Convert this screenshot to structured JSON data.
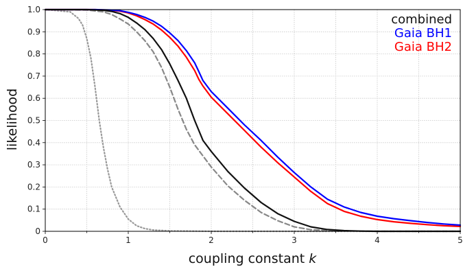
{
  "chart_data": {
    "type": "line",
    "xlabel": "coupling constant k",
    "xlabel_plain": "coupling constant ",
    "xlabel_italic": "k",
    "ylabel": "likelihood",
    "xlim": [
      0,
      5
    ],
    "ylim": [
      0,
      1
    ],
    "grid": true,
    "legend_position": "top-right",
    "x_ticks": [
      "0",
      "1",
      "2",
      "3",
      "4",
      "5"
    ],
    "y_ticks": [
      "0",
      "0.1",
      "0.2",
      "0.3",
      "0.4",
      "0.5",
      "0.6",
      "0.7",
      "0.8",
      "0.9",
      "1.0"
    ],
    "legend": [
      "combined",
      "Gaia BH1",
      "Gaia BH2"
    ],
    "series": [
      {
        "name": "Gaia BH1",
        "color": "#0000ff",
        "style": "solid",
        "x": [
          0,
          0.6,
          0.8,
          0.9,
          1.0,
          1.1,
          1.2,
          1.3,
          1.4,
          1.5,
          1.6,
          1.7,
          1.8,
          1.85,
          1.9,
          2.0,
          2.2,
          2.4,
          2.6,
          2.8,
          3.0,
          3.2,
          3.4,
          3.6,
          3.8,
          4.0,
          4.2,
          4.4,
          4.6,
          4.8,
          5.0
        ],
        "y": [
          1.0,
          1.0,
          0.998,
          0.995,
          0.988,
          0.978,
          0.965,
          0.948,
          0.925,
          0.895,
          0.86,
          0.815,
          0.76,
          0.72,
          0.68,
          0.63,
          0.555,
          0.48,
          0.41,
          0.335,
          0.265,
          0.2,
          0.145,
          0.11,
          0.085,
          0.068,
          0.057,
          0.048,
          0.04,
          0.033,
          0.028
        ]
      },
      {
        "name": "Gaia BH2",
        "color": "#ff0000",
        "style": "solid",
        "x": [
          0,
          0.6,
          0.8,
          0.9,
          1.0,
          1.1,
          1.2,
          1.3,
          1.4,
          1.5,
          1.6,
          1.7,
          1.8,
          1.85,
          1.9,
          2.0,
          2.2,
          2.4,
          2.6,
          2.8,
          3.0,
          3.2,
          3.4,
          3.6,
          3.8,
          4.0,
          4.2,
          4.4,
          4.6,
          4.8,
          5.0
        ],
        "y": [
          1.0,
          1.0,
          0.997,
          0.993,
          0.985,
          0.972,
          0.955,
          0.935,
          0.908,
          0.875,
          0.835,
          0.785,
          0.725,
          0.685,
          0.655,
          0.605,
          0.53,
          0.455,
          0.38,
          0.31,
          0.245,
          0.18,
          0.125,
          0.09,
          0.068,
          0.053,
          0.043,
          0.036,
          0.03,
          0.025,
          0.022
        ]
      },
      {
        "name": "combined",
        "color": "#111111",
        "style": "solid",
        "x": [
          0,
          0.5,
          0.7,
          0.8,
          0.9,
          1.0,
          1.1,
          1.2,
          1.3,
          1.4,
          1.5,
          1.6,
          1.7,
          1.8,
          1.9,
          2.0,
          2.2,
          2.4,
          2.6,
          2.8,
          3.0,
          3.2,
          3.4,
          3.6,
          3.8,
          4.0,
          4.5,
          5.0
        ],
        "y": [
          1.0,
          1.0,
          0.997,
          0.992,
          0.982,
          0.965,
          0.94,
          0.91,
          0.87,
          0.82,
          0.755,
          0.68,
          0.6,
          0.5,
          0.41,
          0.36,
          0.27,
          0.195,
          0.13,
          0.08,
          0.045,
          0.02,
          0.008,
          0.003,
          0.001,
          0.0,
          0.0,
          0.0
        ]
      },
      {
        "name": "",
        "color": "#888888",
        "style": "dashed",
        "x": [
          0,
          0.5,
          0.7,
          0.8,
          0.9,
          1.0,
          1.1,
          1.2,
          1.3,
          1.4,
          1.5,
          1.6,
          1.7,
          1.8,
          1.9,
          2.0,
          2.2,
          2.4,
          2.6,
          2.8,
          3.0,
          3.2,
          3.5,
          4.0,
          4.5,
          5.0
        ],
        "y": [
          1.0,
          0.998,
          0.99,
          0.978,
          0.958,
          0.935,
          0.9,
          0.86,
          0.81,
          0.74,
          0.65,
          0.55,
          0.46,
          0.39,
          0.34,
          0.29,
          0.205,
          0.14,
          0.085,
          0.048,
          0.02,
          0.007,
          0.002,
          0.0,
          0.0,
          0.0
        ]
      },
      {
        "name": "",
        "color": "#999999",
        "style": "dotted",
        "x": [
          0,
          0.3,
          0.4,
          0.45,
          0.5,
          0.55,
          0.6,
          0.65,
          0.7,
          0.75,
          0.8,
          0.9,
          1.0,
          1.1,
          1.2,
          1.3,
          1.5,
          2.0,
          3.0,
          5.0
        ],
        "y": [
          1.0,
          0.99,
          0.96,
          0.93,
          0.87,
          0.78,
          0.65,
          0.5,
          0.38,
          0.28,
          0.2,
          0.11,
          0.055,
          0.025,
          0.012,
          0.006,
          0.002,
          0.0,
          0.0,
          0.0
        ]
      }
    ],
    "legend_colors": [
      "#111111",
      "#0000ff",
      "#ff0000"
    ]
  }
}
